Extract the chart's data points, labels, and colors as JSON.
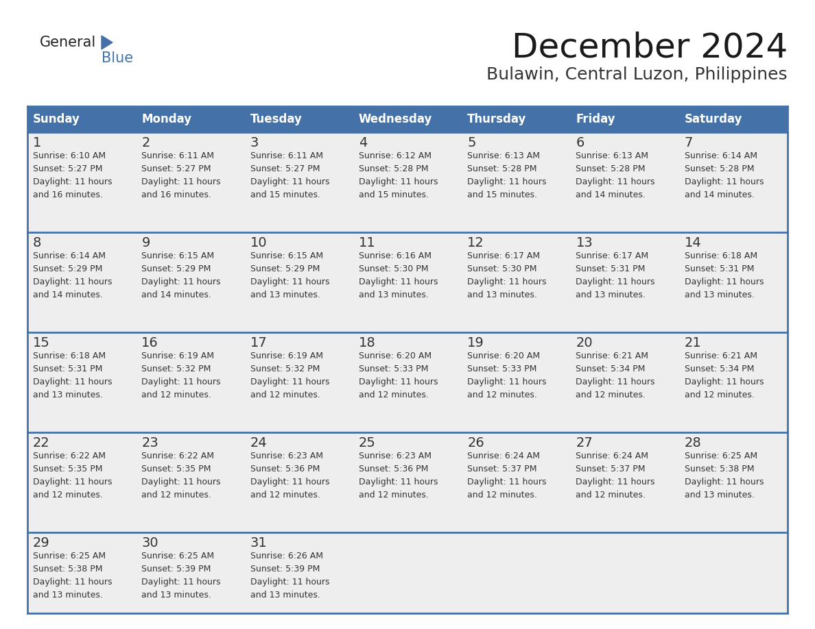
{
  "title": "December 2024",
  "subtitle": "Bulawin, Central Luzon, Philippines",
  "header_bg": "#4472a8",
  "header_text": "#ffffff",
  "day_names": [
    "Sunday",
    "Monday",
    "Tuesday",
    "Wednesday",
    "Thursday",
    "Friday",
    "Saturday"
  ],
  "row_bg": "#eeeeee",
  "border_color": "#4472a8",
  "text_color": "#333333",
  "num_color": "#333333",
  "logo_general_color": "#222222",
  "logo_blue_color": "#4472a8",
  "logo_triangle_color": "#4472a8",
  "days": [
    {
      "day": 1,
      "col": 0,
      "row": 0,
      "sunrise": "6:10 AM",
      "sunset": "5:27 PM",
      "daylight": "11 hours and 16 minutes."
    },
    {
      "day": 2,
      "col": 1,
      "row": 0,
      "sunrise": "6:11 AM",
      "sunset": "5:27 PM",
      "daylight": "11 hours and 16 minutes."
    },
    {
      "day": 3,
      "col": 2,
      "row": 0,
      "sunrise": "6:11 AM",
      "sunset": "5:27 PM",
      "daylight": "11 hours and 15 minutes."
    },
    {
      "day": 4,
      "col": 3,
      "row": 0,
      "sunrise": "6:12 AM",
      "sunset": "5:28 PM",
      "daylight": "11 hours and 15 minutes."
    },
    {
      "day": 5,
      "col": 4,
      "row": 0,
      "sunrise": "6:13 AM",
      "sunset": "5:28 PM",
      "daylight": "11 hours and 15 minutes."
    },
    {
      "day": 6,
      "col": 5,
      "row": 0,
      "sunrise": "6:13 AM",
      "sunset": "5:28 PM",
      "daylight": "11 hours and 14 minutes."
    },
    {
      "day": 7,
      "col": 6,
      "row": 0,
      "sunrise": "6:14 AM",
      "sunset": "5:28 PM",
      "daylight": "11 hours and 14 minutes."
    },
    {
      "day": 8,
      "col": 0,
      "row": 1,
      "sunrise": "6:14 AM",
      "sunset": "5:29 PM",
      "daylight": "11 hours and 14 minutes."
    },
    {
      "day": 9,
      "col": 1,
      "row": 1,
      "sunrise": "6:15 AM",
      "sunset": "5:29 PM",
      "daylight": "11 hours and 14 minutes."
    },
    {
      "day": 10,
      "col": 2,
      "row": 1,
      "sunrise": "6:15 AM",
      "sunset": "5:29 PM",
      "daylight": "11 hours and 13 minutes."
    },
    {
      "day": 11,
      "col": 3,
      "row": 1,
      "sunrise": "6:16 AM",
      "sunset": "5:30 PM",
      "daylight": "11 hours and 13 minutes."
    },
    {
      "day": 12,
      "col": 4,
      "row": 1,
      "sunrise": "6:17 AM",
      "sunset": "5:30 PM",
      "daylight": "11 hours and 13 minutes."
    },
    {
      "day": 13,
      "col": 5,
      "row": 1,
      "sunrise": "6:17 AM",
      "sunset": "5:31 PM",
      "daylight": "11 hours and 13 minutes."
    },
    {
      "day": 14,
      "col": 6,
      "row": 1,
      "sunrise": "6:18 AM",
      "sunset": "5:31 PM",
      "daylight": "11 hours and 13 minutes."
    },
    {
      "day": 15,
      "col": 0,
      "row": 2,
      "sunrise": "6:18 AM",
      "sunset": "5:31 PM",
      "daylight": "11 hours and 13 minutes."
    },
    {
      "day": 16,
      "col": 1,
      "row": 2,
      "sunrise": "6:19 AM",
      "sunset": "5:32 PM",
      "daylight": "11 hours and 12 minutes."
    },
    {
      "day": 17,
      "col": 2,
      "row": 2,
      "sunrise": "6:19 AM",
      "sunset": "5:32 PM",
      "daylight": "11 hours and 12 minutes."
    },
    {
      "day": 18,
      "col": 3,
      "row": 2,
      "sunrise": "6:20 AM",
      "sunset": "5:33 PM",
      "daylight": "11 hours and 12 minutes."
    },
    {
      "day": 19,
      "col": 4,
      "row": 2,
      "sunrise": "6:20 AM",
      "sunset": "5:33 PM",
      "daylight": "11 hours and 12 minutes."
    },
    {
      "day": 20,
      "col": 5,
      "row": 2,
      "sunrise": "6:21 AM",
      "sunset": "5:34 PM",
      "daylight": "11 hours and 12 minutes."
    },
    {
      "day": 21,
      "col": 6,
      "row": 2,
      "sunrise": "6:21 AM",
      "sunset": "5:34 PM",
      "daylight": "11 hours and 12 minutes."
    },
    {
      "day": 22,
      "col": 0,
      "row": 3,
      "sunrise": "6:22 AM",
      "sunset": "5:35 PM",
      "daylight": "11 hours and 12 minutes."
    },
    {
      "day": 23,
      "col": 1,
      "row": 3,
      "sunrise": "6:22 AM",
      "sunset": "5:35 PM",
      "daylight": "11 hours and 12 minutes."
    },
    {
      "day": 24,
      "col": 2,
      "row": 3,
      "sunrise": "6:23 AM",
      "sunset": "5:36 PM",
      "daylight": "11 hours and 12 minutes."
    },
    {
      "day": 25,
      "col": 3,
      "row": 3,
      "sunrise": "6:23 AM",
      "sunset": "5:36 PM",
      "daylight": "11 hours and 12 minutes."
    },
    {
      "day": 26,
      "col": 4,
      "row": 3,
      "sunrise": "6:24 AM",
      "sunset": "5:37 PM",
      "daylight": "11 hours and 12 minutes."
    },
    {
      "day": 27,
      "col": 5,
      "row": 3,
      "sunrise": "6:24 AM",
      "sunset": "5:37 PM",
      "daylight": "11 hours and 12 minutes."
    },
    {
      "day": 28,
      "col": 6,
      "row": 3,
      "sunrise": "6:25 AM",
      "sunset": "5:38 PM",
      "daylight": "11 hours and 13 minutes."
    },
    {
      "day": 29,
      "col": 0,
      "row": 4,
      "sunrise": "6:25 AM",
      "sunset": "5:38 PM",
      "daylight": "11 hours and 13 minutes."
    },
    {
      "day": 30,
      "col": 1,
      "row": 4,
      "sunrise": "6:25 AM",
      "sunset": "5:39 PM",
      "daylight": "11 hours and 13 minutes."
    },
    {
      "day": 31,
      "col": 2,
      "row": 4,
      "sunrise": "6:26 AM",
      "sunset": "5:39 PM",
      "daylight": "11 hours and 13 minutes."
    }
  ]
}
